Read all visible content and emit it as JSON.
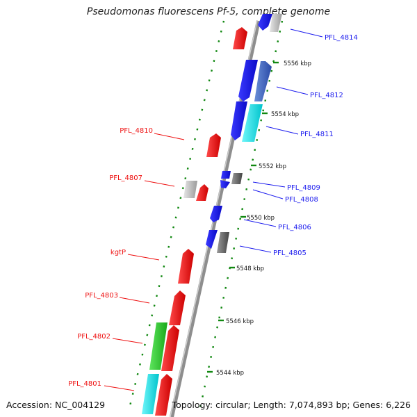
{
  "title": "Pseudomonas fluorescens Pf-5, complete genome",
  "accession": "Accession: NC_004129",
  "summary": "Topology: circular; Length: 7,074,893 bp; Genes: 6,226",
  "colors": {
    "red": "#ee1111",
    "blue": "#1a1aee",
    "grey": "#b8b8b8",
    "cyan": "#11e6ee",
    "green": "#2ed62e",
    "dark": "#555555",
    "tick_green": "#118811",
    "backbone": "#8e8e8e"
  },
  "ticks": [
    "5556 kbp",
    "5554 kbp",
    "5552 kbp",
    "5550 kbp",
    "5548 kbp",
    "5546 kbp",
    "5544 kbp"
  ],
  "labels_left": [
    "PFL_4810",
    "PFL_4807",
    "kgtP",
    "PFL_4803",
    "PFL_4802",
    "PFL_4801"
  ],
  "labels_right": [
    "PFL_4814",
    "PFL_4812",
    "PFL_4811",
    "PFL_4809",
    "PFL_4808",
    "PFL_4806",
    "PFL_4805"
  ]
}
